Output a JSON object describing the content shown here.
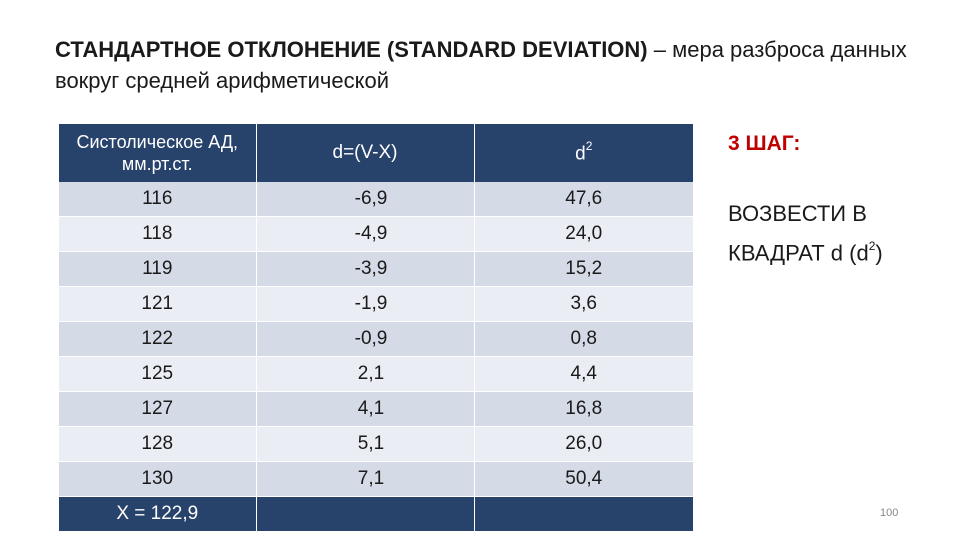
{
  "heading": {
    "bold_part": "СТАНДАРТНОЕ ОТКЛОНЕНИЕ (STANDARD DEVIATION)",
    "rest_part": " – мера разброса данных вокруг средней арифметической"
  },
  "table": {
    "header": {
      "col1": "Систолическое АД, мм.рт.ст.",
      "col2": "d=(V-X)",
      "col3_base": "d",
      "col3_sup": "2"
    },
    "rows": [
      {
        "v": "116",
        "d": "-6,9",
        "d2": "47,6"
      },
      {
        "v": "118",
        "d": "-4,9",
        "d2": "24,0"
      },
      {
        "v": "119",
        "d": "-3,9",
        "d2": "15,2"
      },
      {
        "v": "121",
        "d": "-1,9",
        "d2": "3,6"
      },
      {
        "v": "122",
        "d": "-0,9",
        "d2": "0,8"
      },
      {
        "v": "125",
        "d": "2,1",
        "d2": "4,4"
      },
      {
        "v": "127",
        "d": "4,1",
        "d2": "16,8"
      },
      {
        "v": "128",
        "d": "5,1",
        "d2": "26,0"
      },
      {
        "v": "130",
        "d": "7,1",
        "d2": "50,4"
      }
    ],
    "footer": {
      "mean": "X = 122,9",
      "col2": "",
      "col3": ""
    }
  },
  "step": {
    "title": "3 ШАГ:",
    "text_before_sup": "ВОЗВЕСТИ В КВАДРАТ d (d",
    "text_sup": "2",
    "text_after_sup": ")"
  },
  "page_number": "100",
  "colors": {
    "header_bg": "#27426b",
    "row_dark": "#d4dae6",
    "row_light": "#eaedf3",
    "step_title": "#c00000"
  }
}
